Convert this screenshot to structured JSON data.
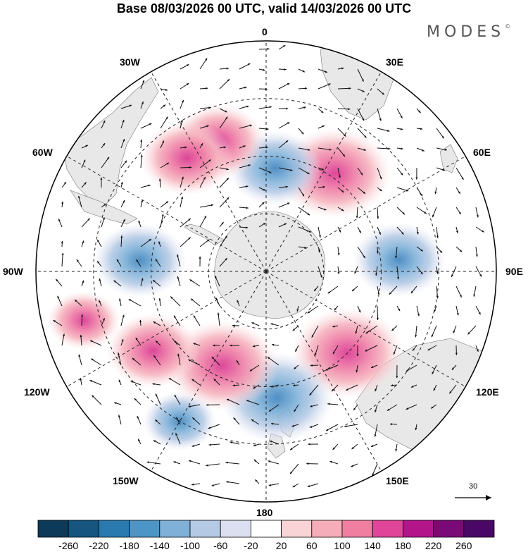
{
  "title": "Base 08/03/2026 00 UTC, valid 14/03/2026 00 UTC",
  "brand": "MODES",
  "brand_mark": "©",
  "longitude_labels": {
    "top": "0",
    "bottom": "180",
    "left": "90W",
    "right": "90E",
    "upper_left_30": "30W",
    "upper_right_30": "30E",
    "upper_left_60": "60W",
    "upper_right_60": "60E",
    "lower_left_120": "120W",
    "lower_right_120": "120E",
    "lower_left_150": "150W",
    "lower_right_150": "150E"
  },
  "vector_scale_label": "30",
  "colorbar": {
    "ticks": [
      "-260",
      "-220",
      "-180",
      "-140",
      "-100",
      "-60",
      "-20",
      "20",
      "60",
      "100",
      "140",
      "180",
      "220",
      "260"
    ],
    "colors": [
      "#0e3a5a",
      "#15557f",
      "#2a7ab0",
      "#4c95c6",
      "#7fb1d8",
      "#b3c9e4",
      "#dcdff0",
      "#ffffff",
      "#f8d4d6",
      "#f5aeb9",
      "#f07ea0",
      "#e0459a",
      "#b3148a",
      "#7a0a78",
      "#4a0866"
    ]
  },
  "anomalies": [
    {
      "sign": "positive",
      "lon": 35,
      "lat_frac": 0.52,
      "strength": 3
    },
    {
      "sign": "negative",
      "lon": 5,
      "lat_frac": 0.45,
      "strength": 2
    },
    {
      "sign": "positive",
      "lon": -20,
      "lat_frac": 0.6,
      "strength": 2
    },
    {
      "sign": "positive",
      "lon": -35,
      "lat_frac": 0.6,
      "strength": 2
    },
    {
      "sign": "negative",
      "lon": -85,
      "lat_frac": 0.55,
      "strength": 2
    },
    {
      "sign": "negative",
      "lon": 85,
      "lat_frac": 0.58,
      "strength": 2
    },
    {
      "sign": "positive",
      "lon": 135,
      "lat_frac": 0.5,
      "strength": 3
    },
    {
      "sign": "negative",
      "lon": 175,
      "lat_frac": 0.55,
      "strength": 3
    },
    {
      "sign": "positive",
      "lon": -155,
      "lat_frac": 0.45,
      "strength": 3
    },
    {
      "sign": "positive",
      "lon": -125,
      "lat_frac": 0.6,
      "strength": 2
    },
    {
      "sign": "negative",
      "lon": -150,
      "lat_frac": 0.75,
      "strength": 1
    },
    {
      "sign": "positive",
      "lon": -105,
      "lat_frac": 0.82,
      "strength": 1
    }
  ]
}
